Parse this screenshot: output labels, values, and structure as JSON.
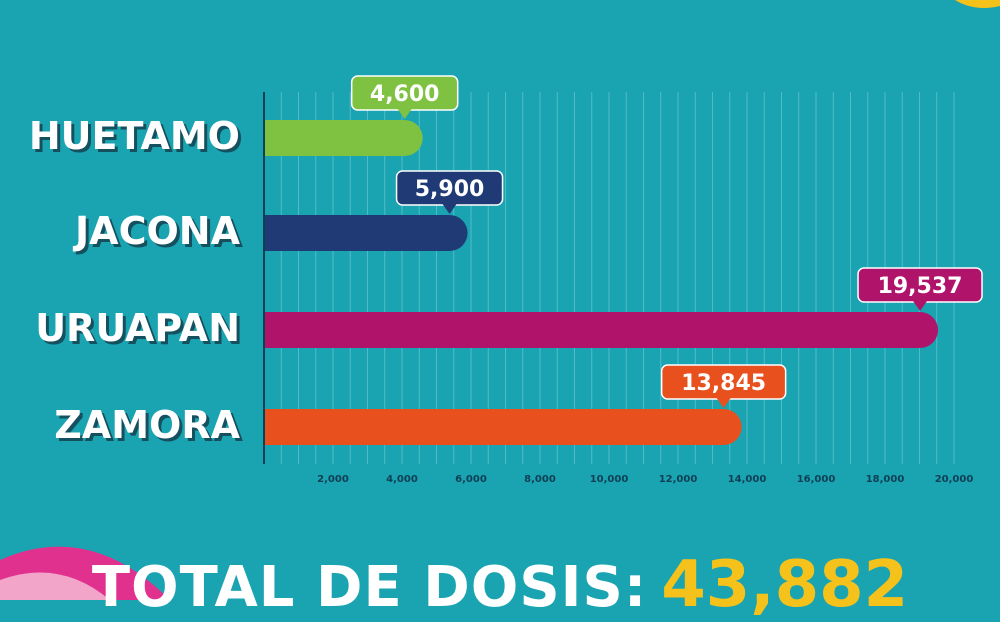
{
  "colors": {
    "background": "#1aa3b1",
    "grid": "#5ec3cc",
    "axis": "#0f3f55",
    "label_text": "#ffffff",
    "label_shadow": "#15505f",
    "total_value": "#f5c21b",
    "deco_pink": "#e0318f",
    "deco_yellow": "#f5c21b"
  },
  "chart_data": {
    "type": "bar",
    "orientation": "horizontal",
    "categories": [
      "HUETAMO",
      "JACONA",
      "URUAPAN",
      "ZAMORA"
    ],
    "values": [
      4600,
      5900,
      19537,
      13845
    ],
    "value_labels": [
      "4,600",
      "5,900",
      "19,537",
      "13,845"
    ],
    "bar_colors": [
      "#7fc241",
      "#1f3a75",
      "#b0136a",
      "#e8501d"
    ],
    "xlim": [
      0,
      20000
    ],
    "x_ticks": [
      2000,
      4000,
      6000,
      8000,
      10000,
      12000,
      14000,
      16000,
      18000,
      20000
    ],
    "x_tick_labels": [
      "2,000",
      "4,000",
      "6,000",
      "8,000",
      "10,000",
      "12,000",
      "14,000",
      "16,000",
      "18,000",
      "20,000"
    ],
    "grid": true
  },
  "total": {
    "label": "TOTAL DE DOSIS:",
    "value": "43,882"
  }
}
